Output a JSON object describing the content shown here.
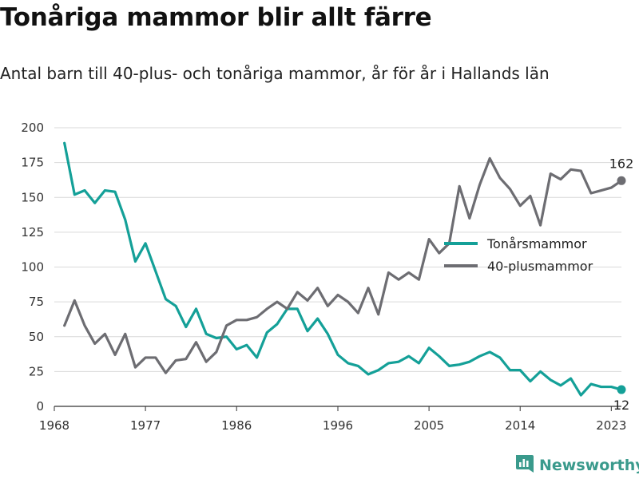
{
  "header": {
    "title": "Tonåriga mammor blir allt färre",
    "subtitle": "Antal barn till 40-plus- och tonåriga mammor, år för år i Hallands län"
  },
  "branding": {
    "name": "Newsworthy",
    "icon": "newsworthy-logo-icon",
    "color": "#3a9a8c"
  },
  "chart_data": {
    "type": "line",
    "title": "Tonåriga mammor blir allt färre",
    "subtitle": "Antal barn till 40-plus- och tonåriga mammor, år för år i Hallands län",
    "xlabel": "",
    "ylabel": "",
    "xlim": [
      1968,
      2024
    ],
    "ylim": [
      0,
      200
    ],
    "x_ticks": [
      "1968",
      "1977",
      "1986",
      "1996",
      "2005",
      "2014",
      "2023"
    ],
    "y_ticks": [
      "0",
      "25",
      "50",
      "75",
      "100",
      "125",
      "150",
      "175",
      "200"
    ],
    "grid": true,
    "legend_position": "right",
    "x": [
      1969,
      1970,
      1971,
      1972,
      1973,
      1974,
      1975,
      1976,
      1977,
      1978,
      1979,
      1980,
      1981,
      1982,
      1983,
      1984,
      1985,
      1986,
      1987,
      1988,
      1989,
      1990,
      1991,
      1992,
      1993,
      1994,
      1995,
      1996,
      1997,
      1998,
      1999,
      2000,
      2001,
      2002,
      2003,
      2004,
      2005,
      2006,
      2007,
      2008,
      2009,
      2010,
      2011,
      2012,
      2013,
      2014,
      2015,
      2016,
      2017,
      2018,
      2019,
      2020,
      2021,
      2022,
      2023,
      2024
    ],
    "series": [
      {
        "name": "Tonårsmammor",
        "color": "#14a098",
        "values": [
          189,
          152,
          155,
          146,
          155,
          154,
          134,
          104,
          117,
          97,
          77,
          72,
          57,
          70,
          52,
          49,
          50,
          41,
          44,
          35,
          53,
          59,
          70,
          70,
          54,
          63,
          52,
          37,
          31,
          29,
          23,
          26,
          31,
          32,
          36,
          31,
          42,
          36,
          29,
          30,
          32,
          36,
          39,
          35,
          26,
          26,
          18,
          25,
          19,
          15,
          20,
          8,
          16,
          14,
          14,
          12
        ],
        "end_label": "12"
      },
      {
        "name": "40-plusmammor",
        "color": "#6d6d72",
        "values": [
          58,
          76,
          58,
          45,
          52,
          37,
          52,
          28,
          35,
          35,
          24,
          33,
          34,
          46,
          32,
          39,
          58,
          62,
          62,
          64,
          70,
          75,
          70,
          82,
          76,
          85,
          72,
          80,
          75,
          67,
          85,
          66,
          96,
          91,
          96,
          91,
          120,
          110,
          117,
          158,
          135,
          159,
          178,
          164,
          156,
          144,
          151,
          130,
          167,
          163,
          170,
          169,
          153,
          155,
          157,
          162
        ],
        "end_label": "162"
      }
    ]
  }
}
